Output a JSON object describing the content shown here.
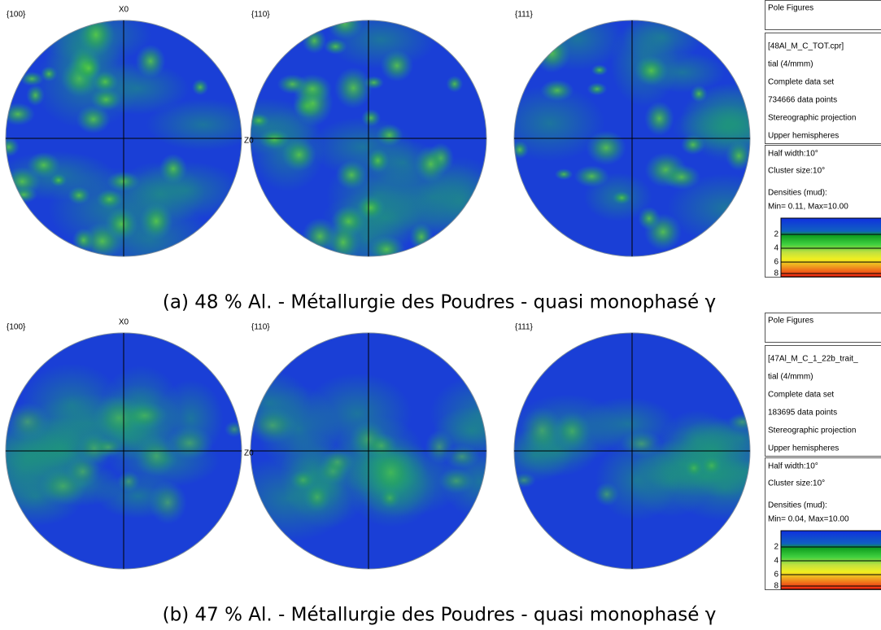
{
  "panels": [
    {
      "figures": [
        {
          "label": "{100}"
        },
        {
          "label": "{110}"
        },
        {
          "label": "{111}"
        }
      ],
      "axis_labels": {
        "x": "X0",
        "z": "Z0"
      },
      "info": {
        "title": "Pole Figures",
        "file": "[48Al_M_C_TOT.cpr]",
        "lines": [
          "tial (4/mmm)",
          "Complete data set",
          "734666 data points",
          "Stereographic projection",
          "Upper hemispheres"
        ],
        "half_width": "Half width:10°",
        "cluster_size": "Cluster size:10°",
        "densities_label": "Densities (mud):",
        "densities_range": "Min= 0.11, Max=10.00",
        "scale_labels": [
          2,
          4,
          6,
          8
        ]
      },
      "caption": "(a) 48 % Al. - Métallurgie des Poudres - quasi monophasé γ"
    },
    {
      "figures": [
        {
          "label": "{100}"
        },
        {
          "label": "{110}"
        },
        {
          "label": "{111}"
        }
      ],
      "axis_labels": {
        "x": "X0",
        "z": "Z0"
      },
      "info": {
        "title": "Pole Figures",
        "file": "[47Al_M_C_1_22b_trait_",
        "lines": [
          "tial (4/mmm)",
          "Complete data set",
          "183695 data points",
          "Stereographic projection",
          "Upper hemispheres"
        ],
        "half_width": "Half width:10°",
        "cluster_size": "Cluster size:10°",
        "densities_label": "Densities (mud):",
        "densities_range": "Min= 0.04, Max=10.00",
        "scale_labels": [
          2,
          4,
          6,
          8
        ]
      },
      "caption": "(b) 47 % Al. - Métallurgie des Poudres - quasi monophasé γ"
    }
  ]
}
